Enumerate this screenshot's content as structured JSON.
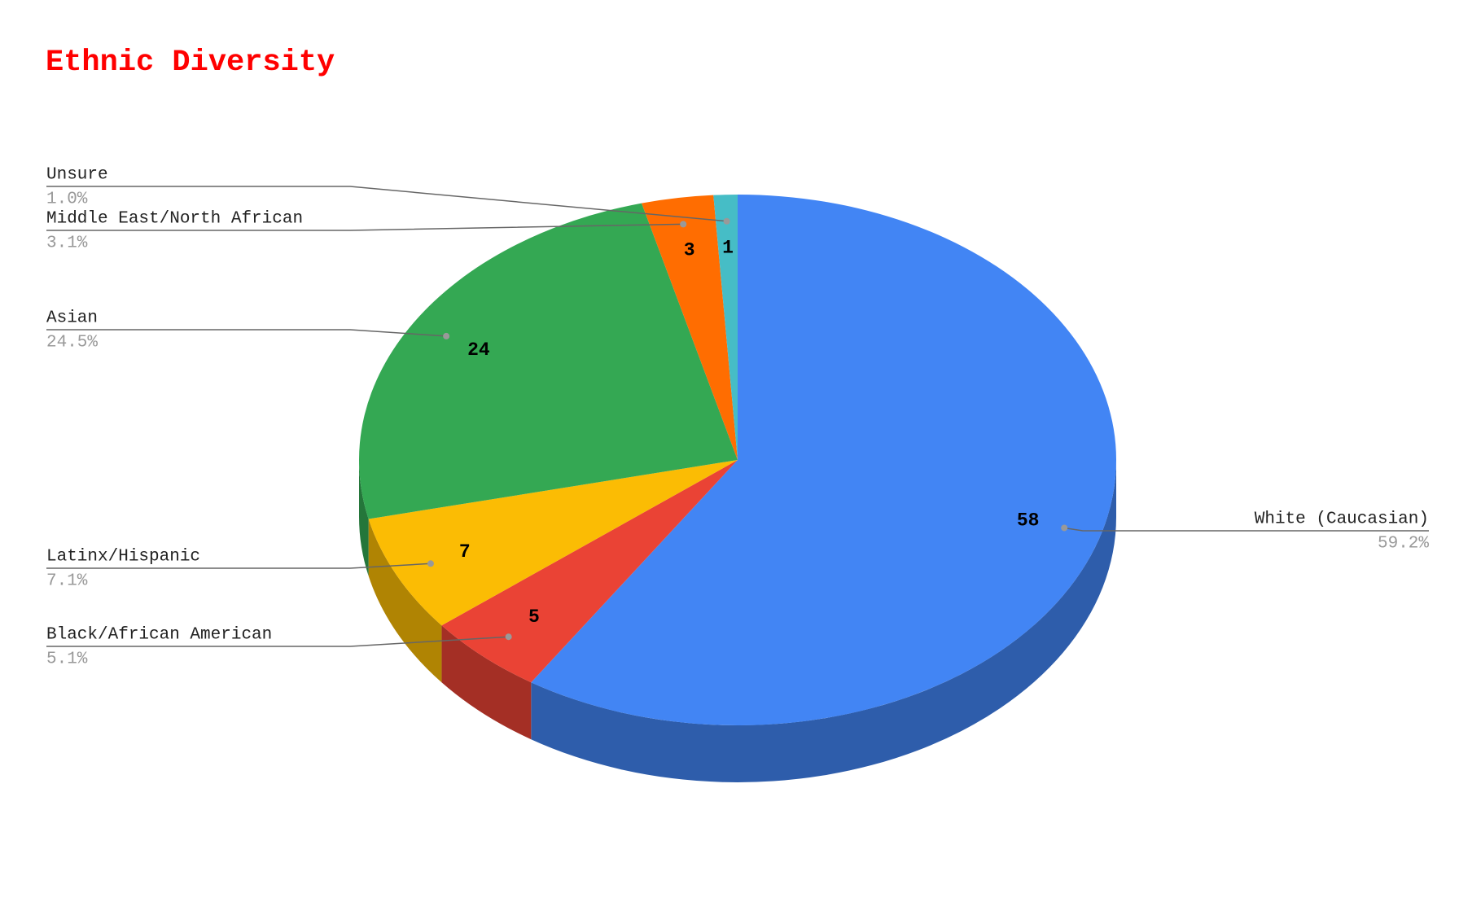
{
  "chart_data": {
    "type": "pie",
    "title": "Ethnic Diversity",
    "categories": [
      "White (Caucasian)",
      "Black/African American",
      "Latinx/Hispanic",
      "Asian",
      "Middle East/North African",
      "Unsure"
    ],
    "values": [
      58,
      5,
      7,
      24,
      3,
      1
    ],
    "percent_labels": [
      "59.2%",
      "5.1%",
      "7.1%",
      "24.5%",
      "3.1%",
      "1.0%"
    ],
    "colors": [
      "#4285f4",
      "#ea4335",
      "#fbbc04",
      "#34a853",
      "#ff6d01",
      "#46bdc6"
    ],
    "three_d": true
  }
}
